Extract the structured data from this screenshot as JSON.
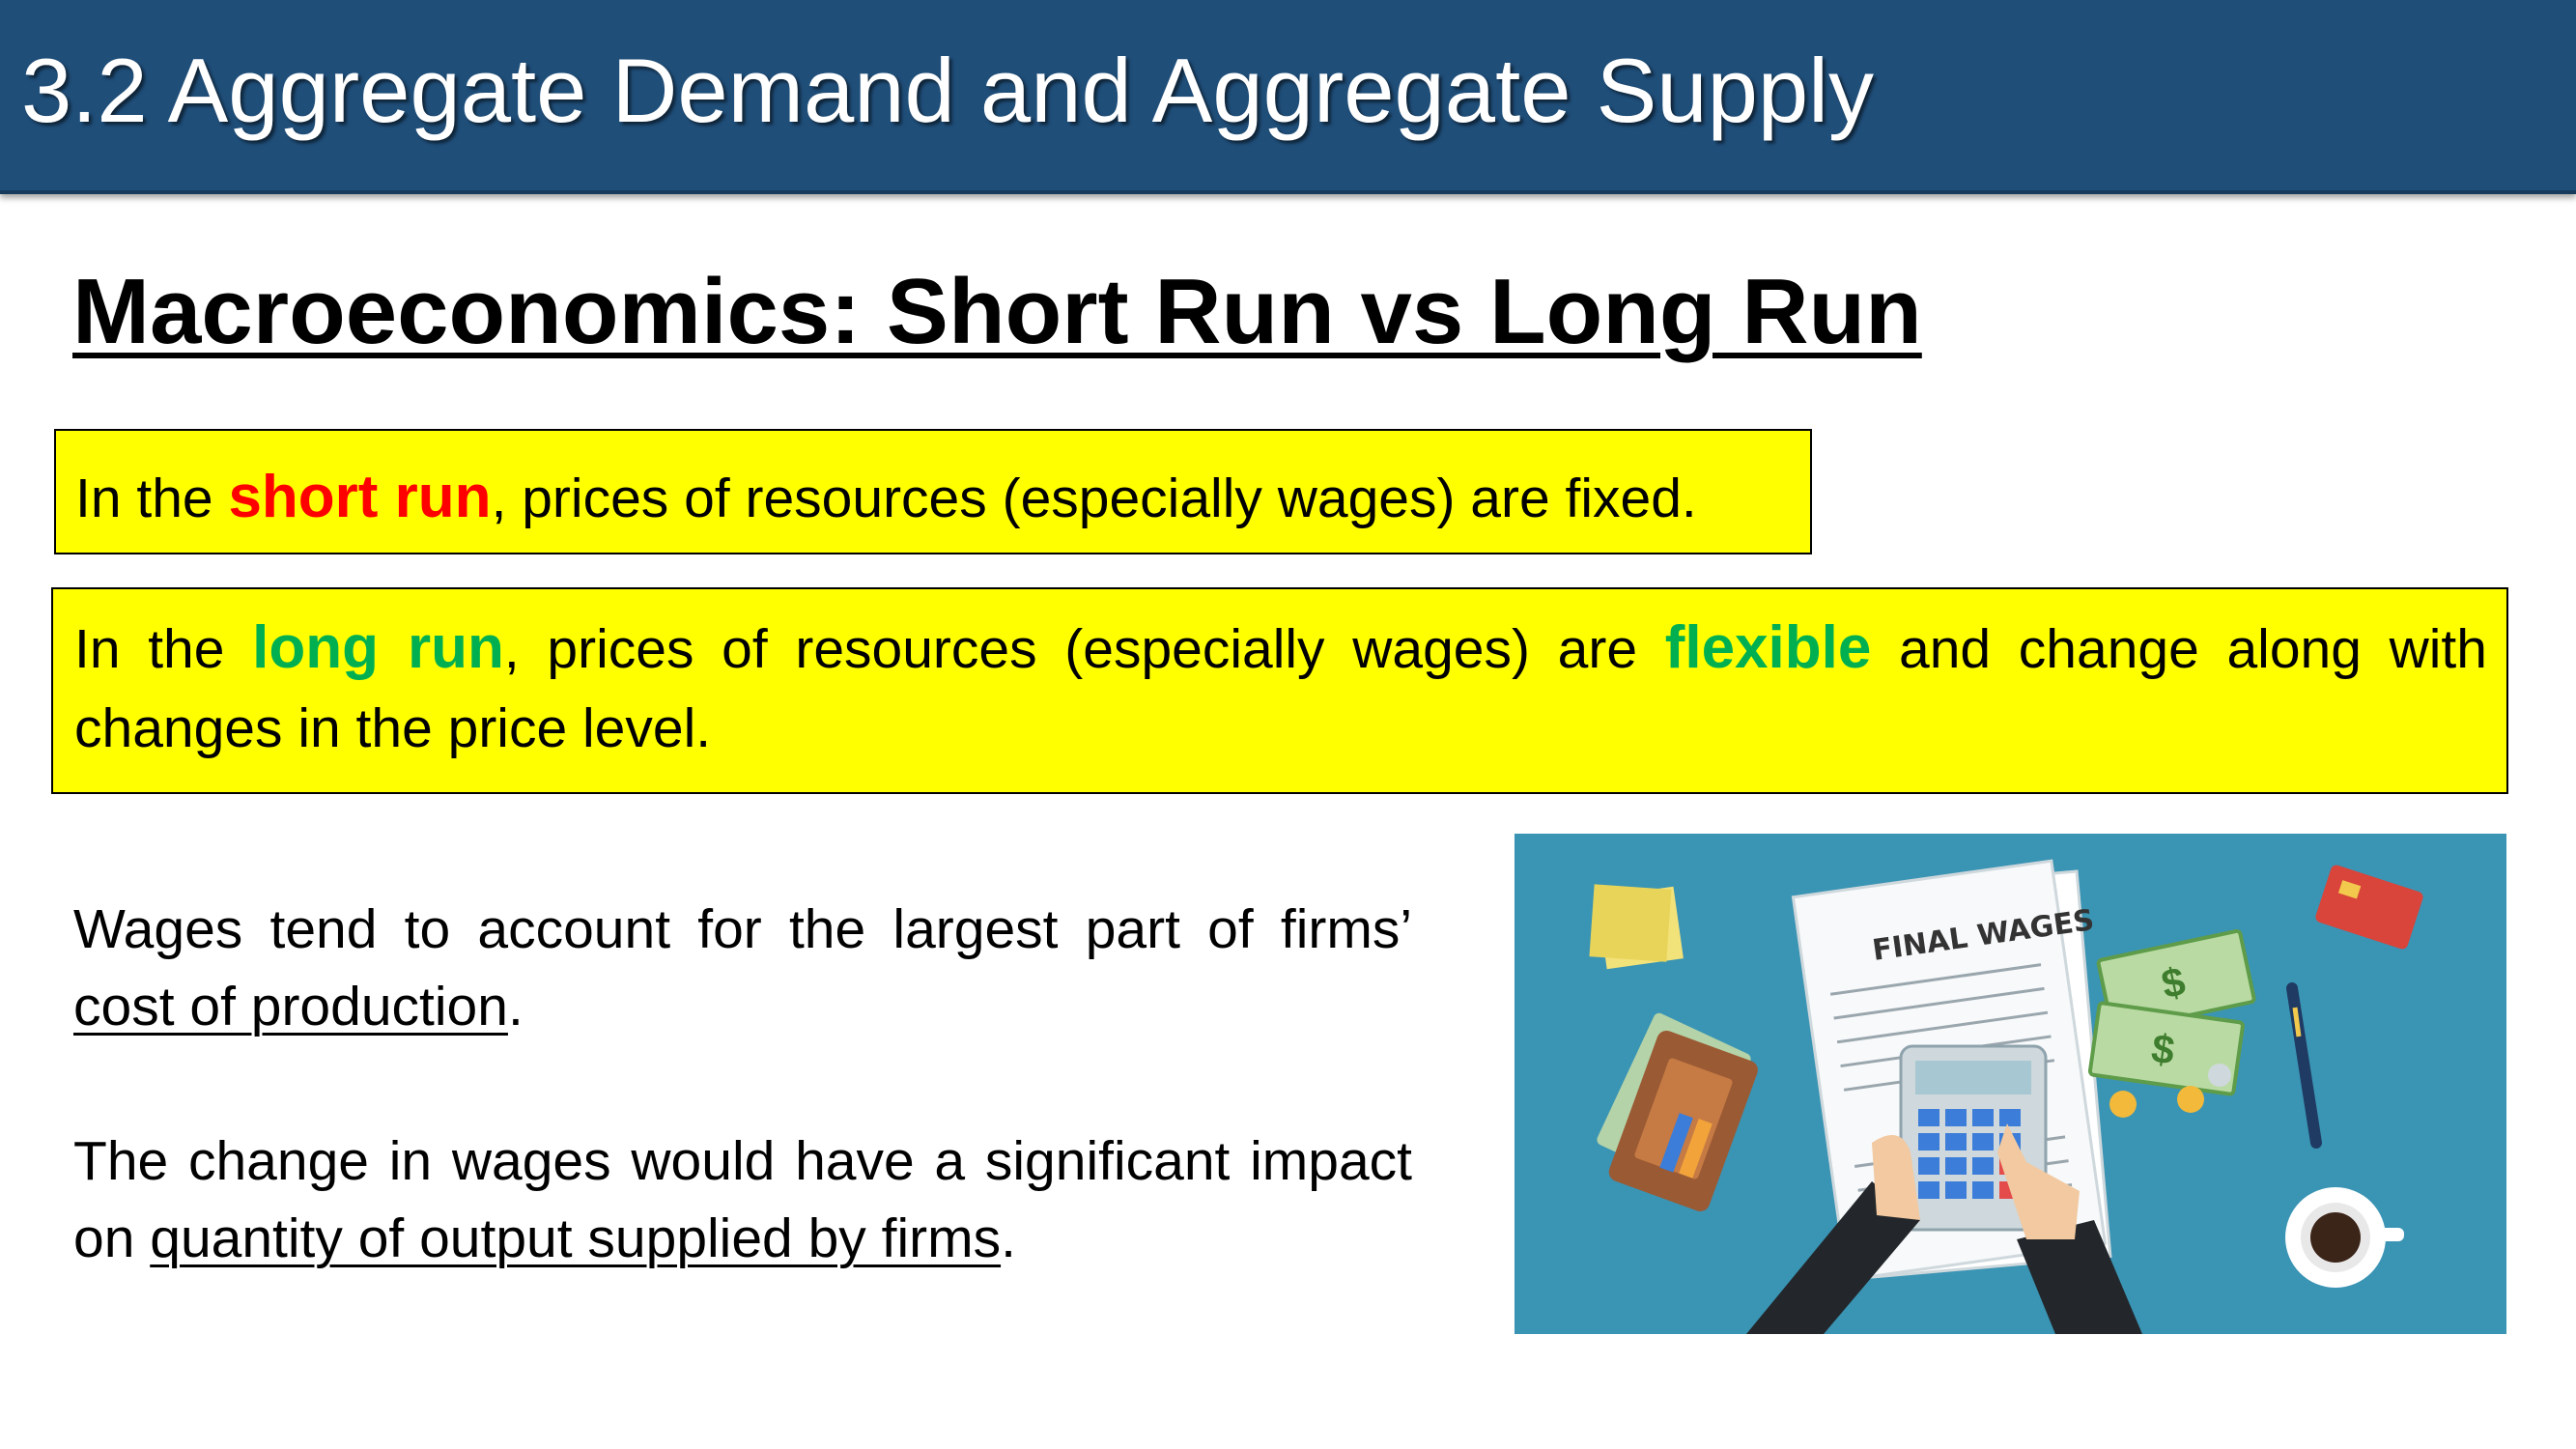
{
  "header": {
    "title": "3.2 Aggregate Demand and Aggregate Supply"
  },
  "heading": "Macroeconomics: Short Run vs Long Run",
  "short_run_box": {
    "prefix": "In the ",
    "highlight": "short run",
    "suffix": ", prices of resources (especially wages) are fixed."
  },
  "long_run_box": {
    "prefix": "In the ",
    "highlight": "long run",
    "middle": ", prices of resources (especially wages) are ",
    "highlight2": "flexible",
    "suffix": " and change along with changes in the price level."
  },
  "paragraph1": {
    "text": "Wages tend to account for the largest part of firms’ ",
    "underlined": "cost of production",
    "end": "."
  },
  "paragraph2": {
    "text": "The change in wages would have a significant impact on ",
    "underlined": "quantity of output supplied by firms",
    "end": "."
  },
  "illustration": {
    "document_title": "FINAL WAGES",
    "colors": {
      "background": "#3a94b4",
      "desk_accent": "#1f4e79"
    }
  },
  "colors": {
    "title_bar": "#1f4e79",
    "highlight_box": "#ffff00",
    "short_run": "#ff0000",
    "long_run": "#00b050"
  }
}
